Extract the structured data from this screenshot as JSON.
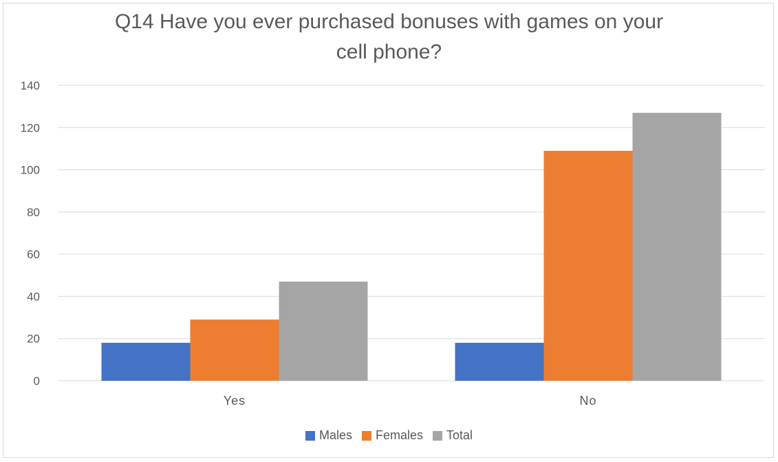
{
  "chart_data": {
    "type": "bar",
    "title": "Q14 Have you ever purchased bonuses with games on your cell phone?",
    "title_lines": [
      "Q14 Have you ever purchased bonuses with games on your",
      "cell phone?"
    ],
    "categories": [
      "Yes",
      "No"
    ],
    "series": [
      {
        "name": "Males",
        "color": "#4472c4",
        "values": [
          18,
          18
        ]
      },
      {
        "name": "Females",
        "color": "#ed7d31",
        "values": [
          29,
          109
        ]
      },
      {
        "name": "Total",
        "color": "#a5a5a5",
        "values": [
          47,
          127
        ]
      }
    ],
    "ylim": [
      0,
      140
    ],
    "yticks": [
      0,
      20,
      40,
      60,
      80,
      100,
      120,
      140
    ],
    "xlabel": "",
    "ylabel": "",
    "grid": true,
    "legend_position": "bottom"
  }
}
